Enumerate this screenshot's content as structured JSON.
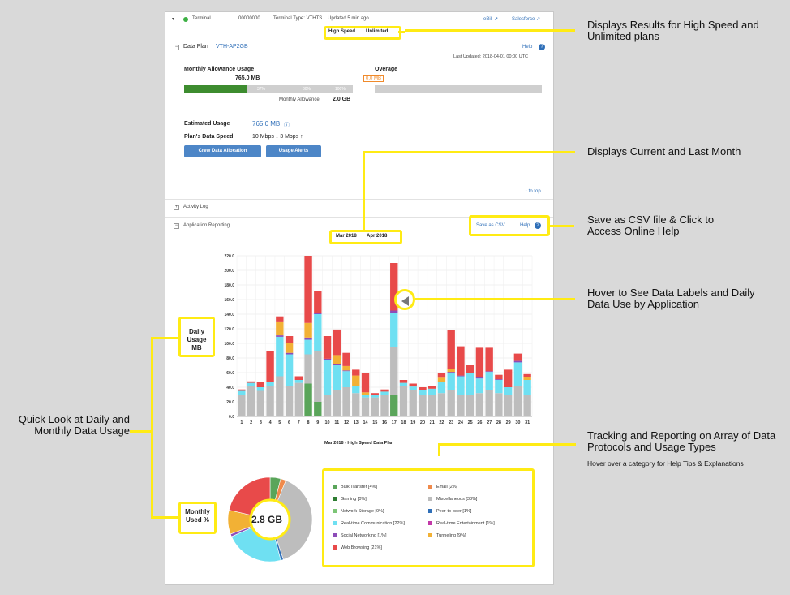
{
  "header": {
    "terminal_label": "Terminal",
    "terminal_id": "00000000",
    "terminal_type": "Terminal Type: VTHTS",
    "updated": "Updated 5 min ago",
    "ebill": "eBill ↗",
    "salesforce": "Salesforce ↗"
  },
  "plan_toggle": {
    "high_speed": "High Speed",
    "unlimited": "Unlimited"
  },
  "data_plan": {
    "title": "Data Plan",
    "plan_name": "VTH-AP2GB",
    "help": "Help",
    "last_updated": "Last Updated: 2018-04-01 00:00 UTC",
    "monthly_allowance_label": "Monthly Allowance Usage",
    "usage_value": "765.0 MB",
    "progress_percent": 37,
    "progress_ticks": [
      "37%",
      "80%",
      "100%"
    ],
    "monthly_allowance_text": "Monthly Allowance",
    "monthly_allowance_value": "2.0 GB",
    "overage_label": "Overage",
    "overage_value": "0.0 MB",
    "estimated_usage_label": "Estimated Usage",
    "estimated_usage_value": "765.0 MB",
    "plan_speed_label": "Plan's Data Speed",
    "plan_speed_value": "10 Mbps ↓ 3 Mbps ↑",
    "crew_button": "Crew Data Allocation",
    "alerts_button": "Usage Alerts",
    "to_top": "↑ to top"
  },
  "activity_log": {
    "label": "Activity Log"
  },
  "app_reporting": {
    "label": "Application Reporting",
    "save_csv": "Save as CSV",
    "help": "Help",
    "month_tabs": [
      "Mar 2018",
      "Apr 2018"
    ],
    "chart_caption": "Mar 2018 - High Speed Data Plan",
    "pie_center": "2.8 GB"
  },
  "chart_data": {
    "type": "bar",
    "stacked": true,
    "categories": [
      "1",
      "2",
      "3",
      "4",
      "5",
      "6",
      "7",
      "8",
      "9",
      "10",
      "11",
      "12",
      "13",
      "14",
      "15",
      "16",
      "17",
      "18",
      "19",
      "20",
      "21",
      "22",
      "23",
      "24",
      "25",
      "26",
      "27",
      "28",
      "29",
      "30",
      "31"
    ],
    "y_ticks": [
      "0.0",
      "20.0",
      "40.0",
      "60.0",
      "80.0",
      "100.0",
      "120.0",
      "140.0",
      "160.0",
      "180.0",
      "200.0",
      "220.0"
    ],
    "ylim": [
      0,
      220
    ],
    "grid": true,
    "series": [
      {
        "name": "Bulk Transfer",
        "color": "#5aa55a",
        "values": [
          0,
          0,
          0,
          0,
          0,
          0,
          0,
          45,
          20,
          0,
          0,
          0,
          0,
          0,
          0,
          0,
          30,
          0,
          0,
          0,
          0,
          0,
          0,
          0,
          0,
          0,
          0,
          0,
          0,
          0,
          0
        ]
      },
      {
        "name": "Miscellaneous",
        "color": "#bdbdbd",
        "values": [
          30,
          42,
          35,
          42,
          55,
          42,
          46,
          40,
          70,
          30,
          36,
          40,
          32,
          26,
          26,
          30,
          65,
          42,
          36,
          30,
          30,
          32,
          36,
          30,
          30,
          32,
          36,
          32,
          30,
          42,
          30
        ]
      },
      {
        "name": "Real-time Communication",
        "color": "#6fe0f2",
        "values": [
          5,
          4,
          5,
          5,
          54,
          43,
          4,
          20,
          50,
          47,
          34,
          22,
          10,
          4,
          3,
          4,
          47,
          4,
          5,
          6,
          8,
          15,
          23,
          25,
          30,
          20,
          25,
          18,
          10,
          32,
          20
        ]
      },
      {
        "name": "Social Networking",
        "color": "#8d4cb8",
        "values": [
          0,
          0,
          0,
          0,
          2,
          2,
          0,
          3,
          2,
          2,
          2,
          1,
          0,
          0,
          0,
          0,
          3,
          0,
          0,
          0,
          0,
          0,
          2,
          1,
          0,
          2,
          1,
          1,
          0,
          2,
          0
        ]
      },
      {
        "name": "Tunneling",
        "color": "#f2b135",
        "values": [
          0,
          0,
          0,
          0,
          18,
          14,
          0,
          20,
          0,
          0,
          12,
          6,
          14,
          3,
          0,
          0,
          0,
          0,
          0,
          0,
          0,
          6,
          4,
          0,
          0,
          0,
          0,
          0,
          0,
          0,
          4
        ]
      },
      {
        "name": "Web Browsing",
        "color": "#e84a4a",
        "values": [
          2,
          2,
          7,
          42,
          8,
          9,
          5,
          92,
          30,
          31,
          35,
          18,
          8,
          27,
          3,
          3,
          65,
          4,
          4,
          4,
          4,
          6,
          53,
          40,
          10,
          40,
          32,
          6,
          24,
          10,
          4
        ]
      }
    ]
  },
  "pie": {
    "total": "2.8 GB",
    "slices": [
      {
        "name": "Bulk Transfer",
        "percent": 4,
        "color": "#5aa55a"
      },
      {
        "name": "Email",
        "percent": 2,
        "color": "#f08a4b"
      },
      {
        "name": "Miscellaneous",
        "percent": 38,
        "color": "#bdbdbd"
      },
      {
        "name": "Peer-to-peer",
        "percent": 1,
        "color": "#2f6fb8"
      },
      {
        "name": "Real-time Communication",
        "percent": 22,
        "color": "#6fe0f2"
      },
      {
        "name": "Social Networking",
        "percent": 1,
        "color": "#8d4cb8"
      },
      {
        "name": "Tunneling",
        "percent": 9,
        "color": "#f2b135"
      },
      {
        "name": "Web Browsing",
        "percent": 21,
        "color": "#e84a4a"
      }
    ]
  },
  "legend": [
    {
      "label": "Bulk Transfer [4%]",
      "color": "#5aa55a"
    },
    {
      "label": "Email [2%]",
      "color": "#f08a4b"
    },
    {
      "label": "Gaming [0%]",
      "color": "#2e7d32"
    },
    {
      "label": "Miscellaneous [38%]",
      "color": "#bdbdbd"
    },
    {
      "label": "Network Storage [0%]",
      "color": "#7cc576"
    },
    {
      "label": "Peer-to-peer [1%]",
      "color": "#2f6fb8"
    },
    {
      "label": "Real-time Communication [22%]",
      "color": "#6fe0f2"
    },
    {
      "label": "Real-time Entertainment [1%]",
      "color": "#c238a8"
    },
    {
      "label": "Social Networking [1%]",
      "color": "#8d4cb8"
    },
    {
      "label": "Tunneling [9%]",
      "color": "#f2b135"
    },
    {
      "label": "Web Browsing [21%]",
      "color": "#e84a4a"
    }
  ],
  "callouts": {
    "plans": "Displays Results for High Speed and Unlimited plans",
    "months": "Displays Current and Last Month",
    "csv": "Save as CSV file & Click to Access Online Help",
    "hover": "Hover to See Data Labels and Daily Data Use by Application",
    "quick_look": "Quick Look at Daily and Monthly Data Usage",
    "tracking": "Tracking and Reporting on Array of Data Protocols and Usage Types",
    "tracking_sub": "Hover over a category for Help Tips & Explanations",
    "daily_usage": "Daily Usage MB",
    "monthly_used": "Monthly Used %"
  }
}
